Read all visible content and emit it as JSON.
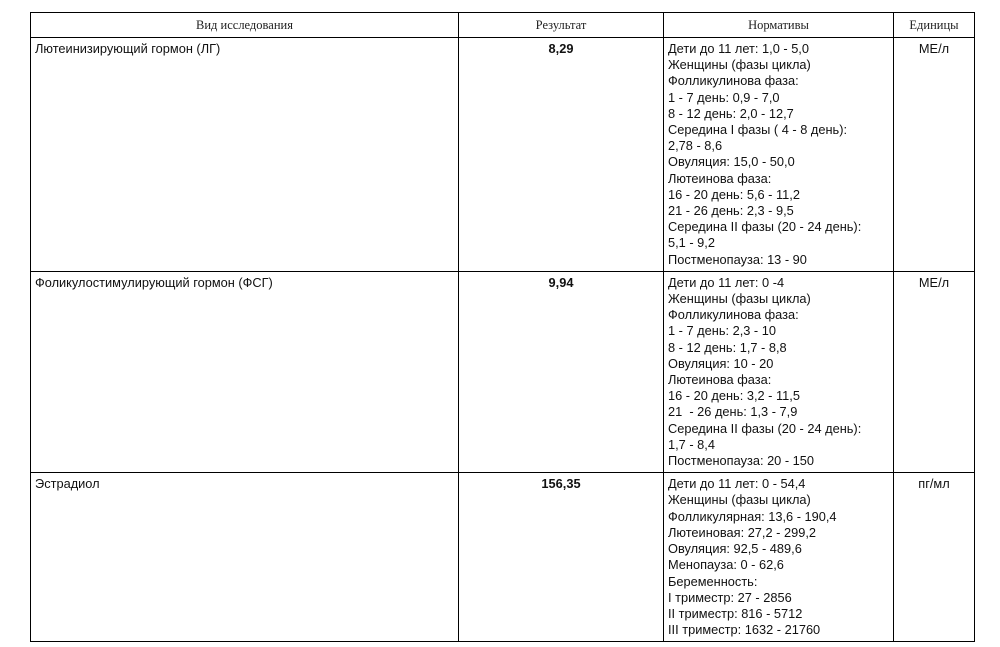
{
  "header": [
    "Вид исследования",
    "Результат",
    "Нормативы",
    "Единицы"
  ],
  "rows": [
    {
      "name": "Лютеинизирующий гормон (ЛГ)",
      "result": "8,29",
      "unit": "МЕ/л",
      "norms": [
        "Дети до 11 лет: 1,0 - 5,0",
        "Женщины (фазы цикла)",
        "Фолликулинова фаза:",
        "1 - 7 день: 0,9 - 7,0",
        "8 - 12 день: 2,0 - 12,7",
        "Середина I фазы ( 4 - 8 день):",
        "2,78 - 8,6",
        "Овуляция: 15,0 - 50,0",
        "Лютеинова фаза:",
        "16 - 20 день: 5,6 - 11,2",
        "21 - 26 день: 2,3 - 9,5",
        "Середина II фазы (20 - 24 день):",
        "5,1 - 9,2",
        "Постменопауза: 13 - 90"
      ]
    },
    {
      "name": "Фоликулостимулирующий гормон (ФСГ)",
      "result": "9,94",
      "unit": "МЕ/л",
      "norms": [
        "Дети до 11 лет: 0 -4",
        "Женщины (фазы цикла)",
        "Фолликулинова фаза:",
        "1 - 7 день: 2,3 - 10",
        "8 - 12 день: 1,7 - 8,8",
        "Овуляция: 10 - 20",
        "Лютеинова фаза:",
        "16 - 20 день: 3,2 - 11,5",
        "21  - 26 день: 1,3 - 7,9",
        "Середина II фазы (20 - 24 день):",
        "1,7 - 8,4",
        "Постменопауза: 20 - 150"
      ]
    },
    {
      "name": "Эстрадиол",
      "result": "156,35",
      "unit": "пг/мл",
      "norms": [
        "Дети до 11 лет: 0 - 54,4",
        "Женщины (фазы цикла)",
        "Фолликулярная: 13,6 - 190,4",
        "Лютеиновая: 27,2 - 299,2",
        "Овуляция: 92,5 - 489,6",
        "Менопауза: 0 - 62,6",
        "Беременность:",
        "I триместр: 27 - 2856",
        "II триместр: 816 - 5712",
        "III триместр: 1632 - 21760"
      ]
    }
  ]
}
